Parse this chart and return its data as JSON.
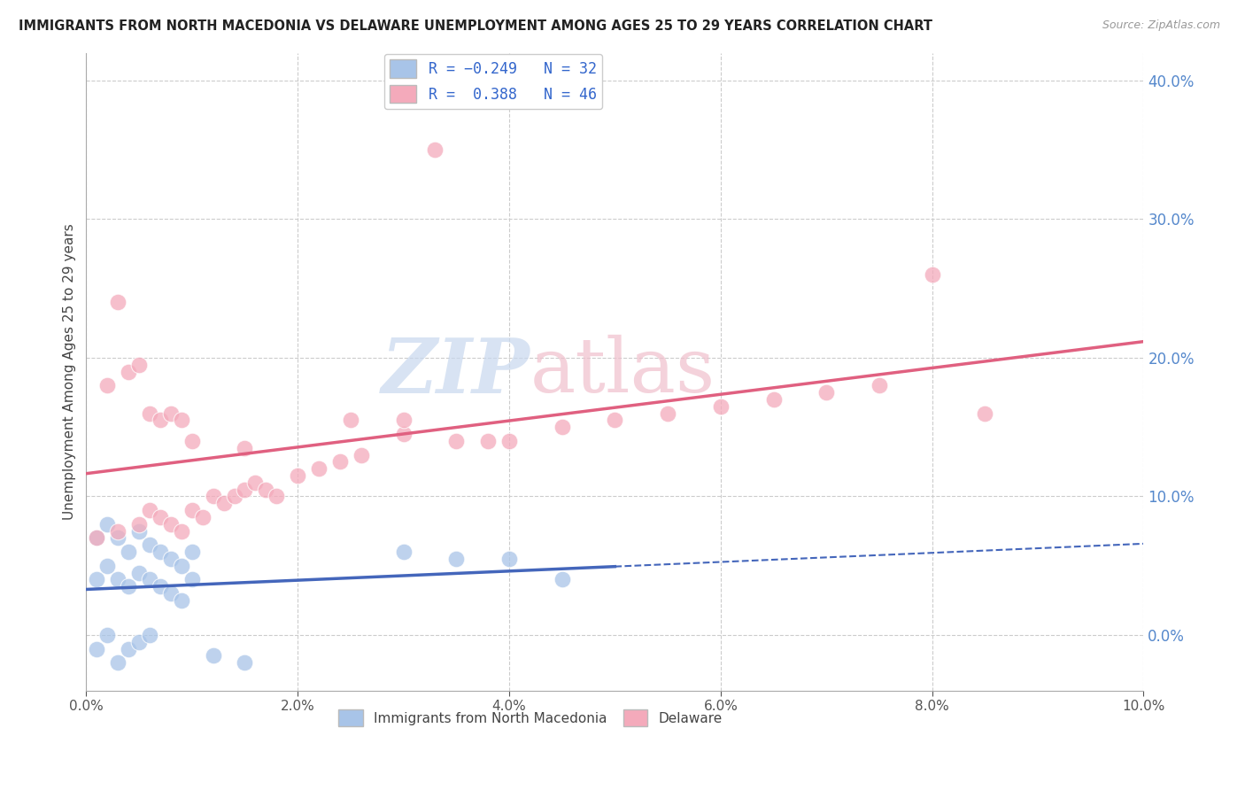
{
  "title": "IMMIGRANTS FROM NORTH MACEDONIA VS DELAWARE UNEMPLOYMENT AMONG AGES 25 TO 29 YEARS CORRELATION CHART",
  "source": "Source: ZipAtlas.com",
  "ylabel": "Unemployment Among Ages 25 to 29 years",
  "xlim": [
    0.0,
    0.1
  ],
  "ylim": [
    -0.04,
    0.42
  ],
  "xticks": [
    0.0,
    0.02,
    0.04,
    0.06,
    0.08,
    0.1
  ],
  "yticks": [
    0.0,
    0.1,
    0.2,
    0.3,
    0.4
  ],
  "legend_r1": "R = -0.249",
  "legend_n1": "N = 32",
  "legend_r2": "R =  0.388",
  "legend_n2": "N = 46",
  "blue_color": "#A8C4E8",
  "pink_color": "#F4AABB",
  "blue_line_color": "#4466BB",
  "pink_line_color": "#E06080",
  "right_tick_color": "#5588CC",
  "watermark_color": "#C8D8EE",
  "watermark_pink": "#F0C0CC",
  "background_color": "#FFFFFF",
  "grid_color": "#CCCCCC",
  "blue_x": [
    0.001,
    0.002,
    0.003,
    0.004,
    0.005,
    0.006,
    0.007,
    0.008,
    0.009,
    0.01,
    0.001,
    0.002,
    0.003,
    0.004,
    0.005,
    0.006,
    0.007,
    0.008,
    0.009,
    0.01,
    0.001,
    0.002,
    0.003,
    0.004,
    0.005,
    0.006,
    0.04,
    0.045,
    0.035,
    0.03,
    0.012,
    0.015
  ],
  "blue_y": [
    0.07,
    0.08,
    0.07,
    0.06,
    0.075,
    0.065,
    0.06,
    0.055,
    0.05,
    0.06,
    0.04,
    0.05,
    0.04,
    0.035,
    0.045,
    0.04,
    0.035,
    0.03,
    0.025,
    0.04,
    -0.01,
    0.0,
    -0.02,
    -0.01,
    -0.005,
    0.0,
    0.055,
    0.04,
    0.055,
    0.06,
    -0.015,
    -0.02
  ],
  "pink_x": [
    0.001,
    0.003,
    0.005,
    0.006,
    0.007,
    0.008,
    0.009,
    0.01,
    0.011,
    0.012,
    0.013,
    0.014,
    0.015,
    0.016,
    0.017,
    0.018,
    0.02,
    0.022,
    0.024,
    0.026,
    0.03,
    0.035,
    0.04,
    0.045,
    0.05,
    0.055,
    0.06,
    0.065,
    0.07,
    0.075,
    0.002,
    0.003,
    0.004,
    0.005,
    0.006,
    0.007,
    0.008,
    0.009,
    0.01,
    0.015,
    0.025,
    0.03,
    0.08,
    0.085,
    0.033,
    0.038
  ],
  "pink_y": [
    0.07,
    0.075,
    0.08,
    0.09,
    0.085,
    0.08,
    0.075,
    0.09,
    0.085,
    0.1,
    0.095,
    0.1,
    0.105,
    0.11,
    0.105,
    0.1,
    0.115,
    0.12,
    0.125,
    0.13,
    0.145,
    0.14,
    0.14,
    0.15,
    0.155,
    0.16,
    0.165,
    0.17,
    0.175,
    0.18,
    0.18,
    0.24,
    0.19,
    0.195,
    0.16,
    0.155,
    0.16,
    0.155,
    0.14,
    0.135,
    0.155,
    0.155,
    0.26,
    0.16,
    0.35,
    0.14
  ]
}
